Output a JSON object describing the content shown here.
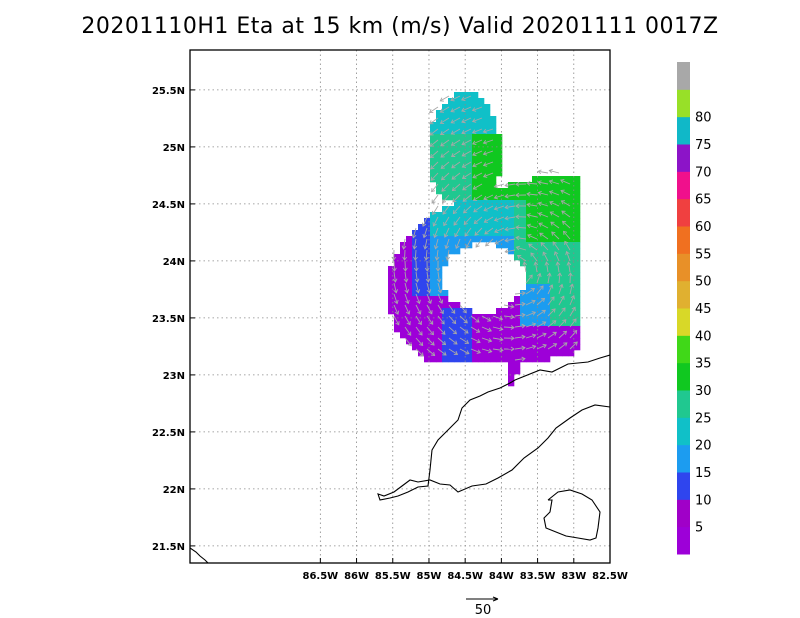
{
  "chart_data": {
    "type": "heatmap",
    "title": "20201110H1 Eta at 15 km (m/s) Valid 20201111 0017Z",
    "xlim": [
      -88.3,
      -82.5
    ],
    "ylim": [
      21.35,
      25.85
    ],
    "x_ticks": [
      -86.5,
      -86,
      -85.5,
      -85,
      -84.5,
      -84,
      -83.5,
      -83,
      -82.5
    ],
    "x_tick_labels": [
      "86.5W",
      "86W",
      "85.5W",
      "85W",
      "84.5W",
      "84W",
      "83.5W",
      "83W",
      "82.5W"
    ],
    "y_ticks": [
      21.5,
      22,
      22.5,
      23,
      23.5,
      24,
      24.5,
      25,
      25.5
    ],
    "y_tick_labels": [
      "21.5N",
      "22N",
      "22.5N",
      "23N",
      "23.5N",
      "24N",
      "24.5N",
      "25N",
      "25.5N"
    ],
    "grid": true,
    "colorbar": {
      "levels": [
        5,
        10,
        15,
        20,
        25,
        30,
        35,
        40,
        45,
        50,
        55,
        60,
        65,
        70,
        75,
        80
      ],
      "labels": [
        "5",
        "10",
        "15",
        "20",
        "25",
        "30",
        "35",
        "40",
        "45",
        "50",
        "55",
        "60",
        "65",
        "70",
        "75",
        "80"
      ],
      "colors": [
        "#9d00d8",
        "#a000c8",
        "#2f45ee",
        "#1c9cf0",
        "#10c0c8",
        "#20c890",
        "#10c820",
        "#40d818",
        "#d8d828",
        "#e0b030",
        "#e89028",
        "#f07020",
        "#f04040",
        "#f0108c",
        "#8c14c8",
        "#10b8c8",
        "#98e028",
        "#a8a8a8"
      ]
    },
    "storm_center": {
      "lon": -83.8,
      "lat": 23.9
    },
    "reference_vector": {
      "label": "50",
      "speed": 50
    }
  }
}
